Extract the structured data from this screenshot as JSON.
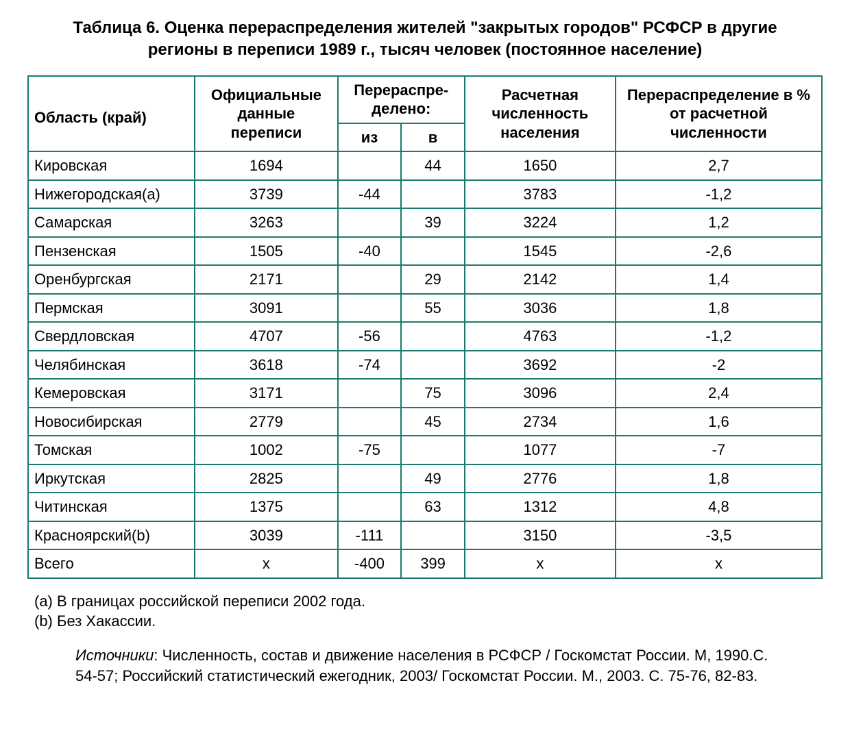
{
  "title": "Таблица 6. Оценка перераспределения жителей \"закрытых городов\" РСФСР в другие регионы в переписи 1989 г., тысяч человек (постоянное население)",
  "table": {
    "border_color": "#1a7a6d",
    "background_color": "#ffffff",
    "text_color": "#000000",
    "font_size_pt": 16,
    "header": {
      "region": "Область (край)",
      "official": "Официальные данные переписи",
      "redistributed": "Перераспре-делено:",
      "out": "из",
      "in": "в",
      "calculated": "Расчетная численность населения",
      "percent": "Перераспределение в % от расчетной численности"
    },
    "rows": [
      {
        "region": "Кировская",
        "official": "1694",
        "out": "",
        "in": "44",
        "calc": "1650",
        "pct": "2,7"
      },
      {
        "region": "Нижегородская(а)",
        "official": "3739",
        "out": "-44",
        "in": "",
        "calc": "3783",
        "pct": "-1,2"
      },
      {
        "region": "Самарская",
        "official": "3263",
        "out": "",
        "in": "39",
        "calc": "3224",
        "pct": "1,2"
      },
      {
        "region": "Пензенская",
        "official": "1505",
        "out": "-40",
        "in": "",
        "calc": "1545",
        "pct": "-2,6"
      },
      {
        "region": "Оренбургская",
        "official": "2171",
        "out": "",
        "in": "29",
        "calc": "2142",
        "pct": "1,4"
      },
      {
        "region": "Пермская",
        "official": "3091",
        "out": "",
        "in": "55",
        "calc": "3036",
        "pct": "1,8"
      },
      {
        "region": "Свердловская",
        "official": "4707",
        "out": "-56",
        "in": "",
        "calc": "4763",
        "pct": "-1,2"
      },
      {
        "region": "Челябинская",
        "official": "3618",
        "out": "-74",
        "in": "",
        "calc": "3692",
        "pct": "-2"
      },
      {
        "region": "Кемеровская",
        "official": "3171",
        "out": "",
        "in": "75",
        "calc": "3096",
        "pct": "2,4"
      },
      {
        "region": "Новосибирская",
        "official": "2779",
        "out": "",
        "in": "45",
        "calc": "2734",
        "pct": "1,6"
      },
      {
        "region": "Томская",
        "official": "1002",
        "out": "-75",
        "in": "",
        "calc": "1077",
        "pct": "-7"
      },
      {
        "region": "Иркутская",
        "official": "2825",
        "out": "",
        "in": "49",
        "calc": "2776",
        "pct": "1,8"
      },
      {
        "region": "Читинская",
        "official": "1375",
        "out": "",
        "in": "63",
        "calc": "1312",
        "pct": "4,8"
      },
      {
        "region": "Красноярский(b)",
        "official": "3039",
        "out": "-111",
        "in": "",
        "calc": "3150",
        "pct": "-3,5"
      },
      {
        "region": "Всего",
        "official": "x",
        "out": "-400",
        "in": "399",
        "calc": "x",
        "pct": "x"
      }
    ]
  },
  "notes": {
    "a": "(a) В границах российской переписи 2002 года.",
    "b": "(b) Без Хакассии."
  },
  "sources": {
    "label": "Источники",
    "text": ": Численность, состав и движение населения в РСФСР / Госкомстат России. М, 1990.С. 54-57; Российский статистический ежегодник, 2003/ Госкомстат России. М., 2003. С. 75-76, 82-83."
  }
}
